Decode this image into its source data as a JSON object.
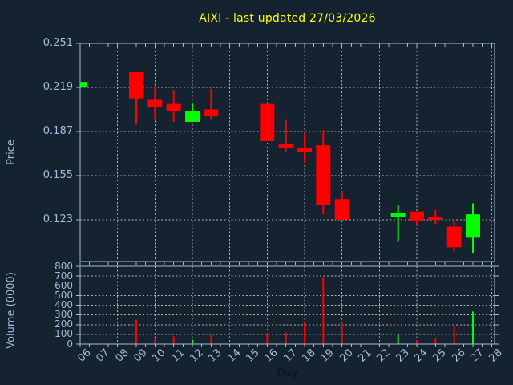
{
  "colors": {
    "background": "#15222f",
    "frame": "#a6bcd4",
    "grid": "#c9c9c9",
    "tick_label": "#a2bdda",
    "title": "#ffff00",
    "up": "#00ff00",
    "down": "#ff0000",
    "day_label": "#0b111a"
  },
  "chart_data": [
    {
      "type": "candlestick",
      "title": "AIXI - last updated 27/03/2026",
      "xlabel": "Day",
      "ylabel": "Price",
      "x_tick_labels": [
        "06",
        "07",
        "08",
        "09",
        "10",
        "11",
        "12",
        "13",
        "14",
        "15",
        "16",
        "17",
        "18",
        "19",
        "20",
        "21",
        "22",
        "23",
        "24",
        "25",
        "26",
        "27",
        "28"
      ],
      "y_tick_labels": [
        "0.251",
        "0.219",
        "0.187",
        "0.155",
        "0.123"
      ],
      "y_tick_values": [
        0.251,
        0.219,
        0.187,
        0.155,
        0.123
      ],
      "ylim": [
        0.093,
        0.251
      ],
      "xlim_days": [
        6,
        28.2
      ],
      "grid": true,
      "legend": false,
      "ohlc": [
        {
          "day": 6,
          "open": 0.219,
          "high": 0.223,
          "low": 0.219,
          "close": 0.223
        },
        {
          "day": 9,
          "open": 0.23,
          "high": 0.23,
          "low": 0.192,
          "close": 0.211
        },
        {
          "day": 10,
          "open": 0.21,
          "high": 0.22,
          "low": 0.196,
          "close": 0.205
        },
        {
          "day": 11,
          "open": 0.207,
          "high": 0.217,
          "low": 0.194,
          "close": 0.202
        },
        {
          "day": 12,
          "open": 0.194,
          "high": 0.207,
          "low": 0.194,
          "close": 0.202
        },
        {
          "day": 13,
          "open": 0.203,
          "high": 0.218,
          "low": 0.196,
          "close": 0.198
        },
        {
          "day": 16,
          "open": 0.207,
          "high": 0.207,
          "low": 0.18,
          "close": 0.18
        },
        {
          "day": 17,
          "open": 0.178,
          "high": 0.196,
          "low": 0.172,
          "close": 0.175
        },
        {
          "day": 18,
          "open": 0.175,
          "high": 0.186,
          "low": 0.164,
          "close": 0.172
        },
        {
          "day": 19,
          "open": 0.177,
          "high": 0.188,
          "low": 0.127,
          "close": 0.134
        },
        {
          "day": 20,
          "open": 0.138,
          "high": 0.144,
          "low": 0.123,
          "close": 0.123
        },
        {
          "day": 23,
          "open": 0.125,
          "high": 0.134,
          "low": 0.107,
          "close": 0.128
        },
        {
          "day": 24,
          "open": 0.129,
          "high": 0.129,
          "low": 0.119,
          "close": 0.122
        },
        {
          "day": 25,
          "open": 0.125,
          "high": 0.13,
          "low": 0.12,
          "close": 0.123
        },
        {
          "day": 26,
          "open": 0.118,
          "high": 0.122,
          "low": 0.1,
          "close": 0.103
        },
        {
          "day": 27,
          "open": 0.11,
          "high": 0.135,
          "low": 0.099,
          "close": 0.127
        }
      ]
    },
    {
      "type": "bar",
      "ylabel": "Volume (0000)",
      "y_tick_labels": [
        "800",
        "700",
        "600",
        "500",
        "400",
        "300",
        "200",
        "100",
        "0"
      ],
      "y_tick_values": [
        800,
        700,
        600,
        500,
        400,
        300,
        200,
        100,
        0
      ],
      "ylim": [
        0,
        800
      ],
      "grid": true,
      "bars": [
        {
          "day": 9,
          "value": 250,
          "direction": "down"
        },
        {
          "day": 10,
          "value": 60,
          "direction": "down"
        },
        {
          "day": 11,
          "value": 80,
          "direction": "down"
        },
        {
          "day": 12,
          "value": 45,
          "direction": "up"
        },
        {
          "day": 13,
          "value": 90,
          "direction": "down"
        },
        {
          "day": 16,
          "value": 115,
          "direction": "down"
        },
        {
          "day": 17,
          "value": 120,
          "direction": "down"
        },
        {
          "day": 18,
          "value": 220,
          "direction": "down"
        },
        {
          "day": 19,
          "value": 690,
          "direction": "down"
        },
        {
          "day": 20,
          "value": 220,
          "direction": "down"
        },
        {
          "day": 23,
          "value": 100,
          "direction": "up"
        },
        {
          "day": 24,
          "value": 40,
          "direction": "down"
        },
        {
          "day": 25,
          "value": 55,
          "direction": "down"
        },
        {
          "day": 26,
          "value": 185,
          "direction": "down"
        },
        {
          "day": 27,
          "value": 335,
          "direction": "up"
        }
      ]
    }
  ]
}
